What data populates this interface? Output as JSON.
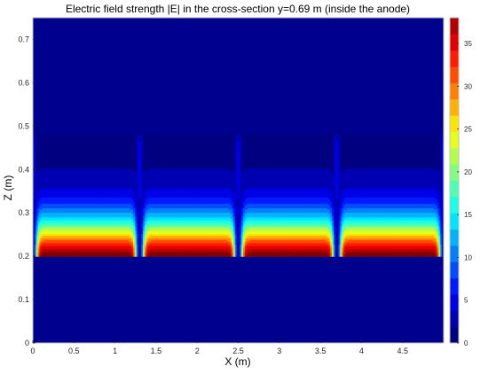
{
  "chart_data": {
    "type": "heatmap",
    "title": "Electric field strength |E| in the cross-section y=0.69 m (inside the anode)",
    "xlabel": "X (m)",
    "ylabel": "Z (m)",
    "xlim": [
      0,
      5.0
    ],
    "ylim": [
      0,
      0.75
    ],
    "x_ticks": [
      "0",
      "0.5",
      "1",
      "1.5",
      "2",
      "2.5",
      "3",
      "3.5",
      "4",
      "4.5"
    ],
    "x_tick_values": [
      0,
      0.5,
      1,
      1.5,
      2,
      2.5,
      3,
      3.5,
      4,
      4.5
    ],
    "y_ticks": [
      "0",
      "0.1",
      "0.2",
      "0.3",
      "0.4",
      "0.5",
      "0.6",
      "0.7"
    ],
    "y_tick_values": [
      0,
      0.1,
      0.2,
      0.3,
      0.4,
      0.5,
      0.6,
      0.7
    ],
    "colorbar": {
      "range": [
        0,
        38
      ],
      "ticks": [
        "0",
        "5",
        "10",
        "15",
        "20",
        "25",
        "30",
        "35"
      ],
      "tick_values": [
        0,
        5,
        10,
        15,
        20,
        25,
        30,
        35
      ],
      "colormap": "jet"
    },
    "field_region": {
      "z_min": 0.2,
      "z_max": 0.48
    },
    "background_value": 0,
    "max_value": 38,
    "low_field_x": [
      0,
      1.3,
      2.5,
      3.7,
      5.0
    ],
    "contour_levels": 20,
    "grid": false
  }
}
